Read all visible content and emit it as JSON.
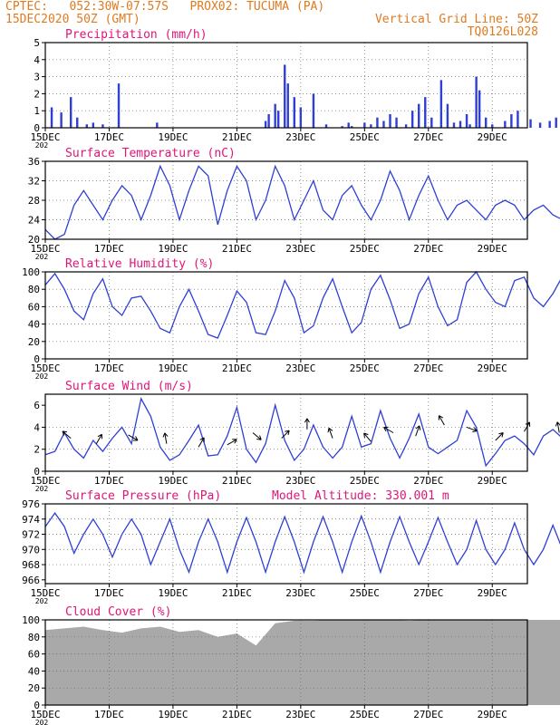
{
  "header": {
    "line1": "CPTEC:   052:30W-07:57S   PROX02: TUCUMA (PA)",
    "line2_left": "15DEC2020 50Z (GMT)",
    "line2_right": "Vertical Grid Line: 50Z",
    "line3_right": "TQ0126L028"
  },
  "colors": {
    "header": "#e07a1e",
    "title": "#e0157a",
    "line": "#2f3fd6",
    "bar": "#2f3fd6",
    "cloud": "#a9a9a9",
    "grid": "#666666"
  },
  "x_ticks": [
    "15DEC",
    "17DEC",
    "19DEC",
    "21DEC",
    "23DEC",
    "25DEC",
    "27DEC",
    "29DEC"
  ],
  "x_tick_sub": "202",
  "panels": {
    "precip": {
      "title": "Precipitation (mm/h)",
      "yticks": [
        "0",
        "1",
        "2",
        "3",
        "4",
        "5"
      ]
    },
    "temp": {
      "title": "Surface Temperature (nC)",
      "yticks": [
        "20",
        "24",
        "28",
        "32",
        "36"
      ]
    },
    "rh": {
      "title": "Relative Humidity (%)",
      "yticks": [
        "0",
        "20",
        "40",
        "60",
        "80",
        "100"
      ]
    },
    "wind": {
      "title": "Surface Wind (m/s)",
      "yticks": [
        "0",
        "2",
        "4",
        "6"
      ]
    },
    "pres": {
      "title": "Surface Pressure (hPa)",
      "note": "Model Altitude: 330.001 m",
      "yticks": [
        "966",
        "968",
        "970",
        "972",
        "974",
        "976"
      ]
    },
    "cloud": {
      "title": "Cloud Cover (%)",
      "yticks": [
        "0",
        "20",
        "40",
        "60",
        "80",
        "100"
      ]
    }
  },
  "chart_data": [
    {
      "type": "bar",
      "title": "Precipitation (mm/h)",
      "x_unit": "days since 15DEC 00Z",
      "ylim": [
        0,
        5
      ],
      "x": [
        0.2,
        0.5,
        0.8,
        1.0,
        1.3,
        1.5,
        1.8,
        2.3,
        3.5,
        6.9,
        7.0,
        7.2,
        7.3,
        7.5,
        7.6,
        7.8,
        8.0,
        8.4,
        8.8,
        9.3,
        9.5,
        9.6,
        10.0,
        10.2,
        10.4,
        10.6,
        10.8,
        11.0,
        11.3,
        11.5,
        11.7,
        11.9,
        12.1,
        12.4,
        12.6,
        12.8,
        13.0,
        13.2,
        13.3,
        13.5,
        13.6,
        13.8,
        14.0,
        14.4,
        14.6,
        14.8,
        15.2,
        15.5,
        15.8,
        16.0,
        16.5,
        16.7,
        17.0,
        17.3,
        17.5,
        17.8,
        18.0,
        18.2,
        18.5
      ],
      "y": [
        1.2,
        0.9,
        1.8,
        0.6,
        0.2,
        0.3,
        0.2,
        2.6,
        0.3,
        0.4,
        0.8,
        1.4,
        1.0,
        3.7,
        2.6,
        1.8,
        1.2,
        2.0,
        0.2,
        0.1,
        0.3,
        0.1,
        0.3,
        0.2,
        0.6,
        0.4,
        0.8,
        0.6,
        0.2,
        1.0,
        1.4,
        1.8,
        0.6,
        2.8,
        1.4,
        0.3,
        0.4,
        0.8,
        0.2,
        3.0,
        2.2,
        0.6,
        0.2,
        0.4,
        0.8,
        1.0,
        0.5,
        0.3,
        0.4,
        0.6,
        0.4,
        0.8,
        1.2,
        0.6,
        0.4,
        0.5,
        0.4,
        0.8,
        0.3
      ]
    },
    {
      "type": "line",
      "title": "Surface Temperature (nC)",
      "ylim": [
        20,
        36
      ],
      "x": [
        0,
        0.3,
        0.6,
        0.9,
        1.2,
        1.5,
        1.8,
        2.1,
        2.4,
        2.7,
        3.0,
        3.3,
        3.6,
        3.9,
        4.2,
        4.5,
        4.8,
        5.1,
        5.4,
        5.7,
        6.0,
        6.3,
        6.6,
        6.9,
        7.2,
        7.5,
        7.8,
        8.1,
        8.4,
        8.7,
        9.0,
        9.3,
        9.6,
        9.9,
        10.2,
        10.5,
        10.8,
        11.1,
        11.4,
        11.7,
        12.0,
        12.3,
        12.6,
        12.9,
        13.2,
        13.5,
        13.8,
        14.1,
        14.4,
        14.7,
        15.0,
        15.3,
        15.6,
        15.9,
        16.2,
        16.5,
        16.8,
        17.1,
        17.4,
        17.7,
        18.0,
        18.3,
        18.6
      ],
      "y": [
        22,
        20,
        21,
        27,
        30,
        27,
        24,
        28,
        31,
        29,
        24,
        29,
        35,
        31,
        24,
        30,
        35,
        33,
        23,
        30,
        35,
        32,
        24,
        28,
        35,
        31,
        24,
        28,
        32,
        26,
        24,
        29,
        31,
        27,
        24,
        28,
        34,
        30,
        24,
        29,
        33,
        28,
        24,
        27,
        28,
        26,
        24,
        27,
        28,
        27,
        24,
        26,
        27,
        25,
        24,
        27,
        30,
        27,
        24,
        27,
        32,
        29,
        28
      ]
    },
    {
      "type": "line",
      "title": "Relative Humidity (%)",
      "ylim": [
        0,
        100
      ],
      "x": [
        0,
        0.3,
        0.6,
        0.9,
        1.2,
        1.5,
        1.8,
        2.1,
        2.4,
        2.7,
        3.0,
        3.3,
        3.6,
        3.9,
        4.2,
        4.5,
        4.8,
        5.1,
        5.4,
        5.7,
        6.0,
        6.3,
        6.6,
        6.9,
        7.2,
        7.5,
        7.8,
        8.1,
        8.4,
        8.7,
        9.0,
        9.3,
        9.6,
        9.9,
        10.2,
        10.5,
        10.8,
        11.1,
        11.4,
        11.7,
        12.0,
        12.3,
        12.6,
        12.9,
        13.2,
        13.5,
        13.8,
        14.1,
        14.4,
        14.7,
        15.0,
        15.3,
        15.6,
        15.9,
        16.2,
        16.5,
        16.8,
        17.1,
        17.4,
        17.7,
        18.0,
        18.3,
        18.6
      ],
      "y": [
        85,
        98,
        80,
        55,
        45,
        75,
        92,
        60,
        50,
        70,
        72,
        55,
        35,
        30,
        60,
        80,
        55,
        28,
        24,
        50,
        78,
        65,
        30,
        28,
        55,
        90,
        70,
        30,
        38,
        70,
        92,
        60,
        30,
        42,
        80,
        96,
        68,
        35,
        40,
        75,
        94,
        60,
        38,
        45,
        88,
        100,
        80,
        65,
        60,
        90,
        94,
        70,
        60,
        75,
        95,
        70,
        40,
        35,
        60,
        92,
        60,
        40,
        45
      ]
    },
    {
      "type": "line",
      "title": "Surface Wind (m/s)",
      "ylim": [
        0,
        7
      ],
      "x": [
        0,
        0.3,
        0.6,
        0.9,
        1.2,
        1.5,
        1.8,
        2.1,
        2.4,
        2.7,
        3.0,
        3.3,
        3.6,
        3.9,
        4.2,
        4.5,
        4.8,
        5.1,
        5.4,
        5.7,
        6.0,
        6.3,
        6.6,
        6.9,
        7.2,
        7.5,
        7.8,
        8.1,
        8.4,
        8.7,
        9.0,
        9.3,
        9.6,
        9.9,
        10.2,
        10.5,
        10.8,
        11.1,
        11.4,
        11.7,
        12.0,
        12.3,
        12.6,
        12.9,
        13.2,
        13.5,
        13.8,
        14.1,
        14.4,
        14.7,
        15.0,
        15.3,
        15.6,
        15.9,
        16.2,
        16.5,
        16.8,
        17.1,
        17.4,
        17.7,
        18.0,
        18.3,
        18.6
      ],
      "y": [
        1.5,
        1.8,
        3.5,
        2.0,
        1.2,
        2.8,
        1.8,
        3.0,
        4.0,
        2.5,
        6.6,
        5.0,
        2.2,
        1.0,
        1.5,
        2.8,
        4.2,
        1.4,
        1.5,
        3.2,
        5.8,
        2.0,
        0.8,
        2.5,
        6.0,
        2.8,
        1.0,
        2.0,
        4.2,
        2.2,
        1.2,
        2.2,
        5.0,
        2.2,
        2.5,
        5.5,
        3.0,
        1.2,
        3.0,
        5.2,
        2.2,
        1.6,
        2.2,
        2.8,
        5.5,
        4.0,
        0.5,
        1.6,
        2.8,
        3.2,
        2.5,
        1.5,
        3.2,
        3.8,
        3.0,
        1.2,
        2.0,
        4.8,
        2.2,
        1.8,
        5.8,
        3.5,
        3.0
      ]
    },
    {
      "type": "line",
      "title": "Surface Pressure (hPa)",
      "ylim": [
        965.5,
        976
      ],
      "x": [
        0,
        0.3,
        0.6,
        0.9,
        1.2,
        1.5,
        1.8,
        2.1,
        2.4,
        2.7,
        3.0,
        3.3,
        3.6,
        3.9,
        4.2,
        4.5,
        4.8,
        5.1,
        5.4,
        5.7,
        6.0,
        6.3,
        6.6,
        6.9,
        7.2,
        7.5,
        7.8,
        8.1,
        8.4,
        8.7,
        9.0,
        9.3,
        9.6,
        9.9,
        10.2,
        10.5,
        10.8,
        11.1,
        11.4,
        11.7,
        12.0,
        12.3,
        12.6,
        12.9,
        13.2,
        13.5,
        13.8,
        14.1,
        14.4,
        14.7,
        15.0,
        15.3,
        15.6,
        15.9,
        16.2,
        16.5,
        16.8,
        17.1,
        17.4,
        17.7,
        18.0,
        18.3,
        18.6
      ],
      "y": [
        973,
        974.8,
        973,
        969.5,
        972,
        974,
        972,
        969,
        972,
        974,
        972,
        968,
        971,
        974,
        970,
        967,
        971,
        974,
        971,
        967,
        971,
        974.2,
        971,
        967,
        971,
        974.3,
        971,
        967,
        971,
        974.3,
        971,
        967,
        971,
        974.4,
        971,
        967,
        971,
        974.3,
        971,
        968,
        971,
        974.2,
        971,
        968,
        970,
        973.8,
        970,
        968,
        970,
        973.5,
        970,
        968,
        970,
        973.2,
        970,
        968,
        970,
        973.6,
        970,
        968,
        970,
        972.6,
        972
      ]
    },
    {
      "type": "area",
      "title": "Cloud Cover (%)",
      "ylim": [
        0,
        100
      ],
      "x": [
        0,
        0.6,
        1.2,
        1.8,
        2.4,
        3.0,
        3.6,
        4.2,
        4.8,
        5.4,
        6.0,
        6.6,
        7.2,
        7.8,
        8.4,
        9.0,
        9.6,
        10.2,
        10.8,
        11.4,
        12.0,
        12.6,
        13.2,
        13.8,
        14.4,
        15.0,
        15.6,
        16.2,
        16.8,
        17.4,
        18.0,
        18.6
      ],
      "y": [
        88,
        90,
        92,
        88,
        85,
        90,
        92,
        86,
        88,
        80,
        84,
        70,
        96,
        99,
        99,
        100,
        100,
        100,
        100,
        99,
        100,
        100,
        100,
        100,
        100,
        100,
        100,
        100,
        100,
        100,
        100,
        100
      ]
    }
  ]
}
